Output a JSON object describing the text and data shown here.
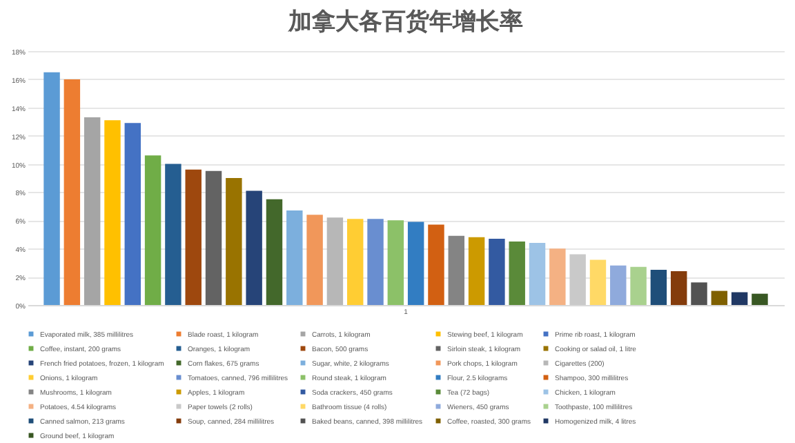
{
  "chart_data": {
    "type": "bar",
    "title": "加拿大各百货年增长率",
    "categories": [
      "1"
    ],
    "ylim": [
      0,
      18
    ],
    "yticks": [
      {
        "value": 0,
        "label": "0%"
      },
      {
        "value": 2,
        "label": "2%"
      },
      {
        "value": 4,
        "label": "4%"
      },
      {
        "value": 6,
        "label": "6%"
      },
      {
        "value": 8,
        "label": "8%"
      },
      {
        "value": 10,
        "label": "10%"
      },
      {
        "value": 12,
        "label": "12%"
      },
      {
        "value": 14,
        "label": "14%"
      },
      {
        "value": 16,
        "label": "16%"
      },
      {
        "value": 18,
        "label": "18%"
      }
    ],
    "grid": "y",
    "legend": "bottom",
    "series": [
      {
        "name": "Evaporated milk, 385 millilitres",
        "color": "#5b9bd5",
        "values": [
          16.5
        ]
      },
      {
        "name": "Blade roast, 1 kilogram",
        "color": "#ed7d31",
        "values": [
          16.0
        ]
      },
      {
        "name": "Carrots, 1 kilogram",
        "color": "#a5a5a5",
        "values": [
          13.3
        ]
      },
      {
        "name": "Stewing beef, 1 kilogram",
        "color": "#ffc000",
        "values": [
          13.1
        ]
      },
      {
        "name": "Prime rib roast, 1 kilogram",
        "color": "#4472c4",
        "values": [
          12.9
        ]
      },
      {
        "name": "Coffee, instant, 200 grams",
        "color": "#70ad47",
        "values": [
          10.6
        ]
      },
      {
        "name": "Oranges, 1 kilogram",
        "color": "#255e91",
        "values": [
          10.0
        ]
      },
      {
        "name": "Bacon, 500 grams",
        "color": "#9e480e",
        "values": [
          9.6
        ]
      },
      {
        "name": "Sirloin steak, 1 kilogram",
        "color": "#636363",
        "values": [
          9.5
        ]
      },
      {
        "name": "Cooking or salad oil, 1 litre",
        "color": "#997300",
        "values": [
          9.0
        ]
      },
      {
        "name": "French fried potatoes, frozen, 1 kilogram",
        "color": "#264478",
        "values": [
          8.1
        ]
      },
      {
        "name": "Corn flakes, 675 grams",
        "color": "#43682b",
        "values": [
          7.5
        ]
      },
      {
        "name": "Sugar, white, 2 kilograms",
        "color": "#7cafdd",
        "values": [
          6.7
        ]
      },
      {
        "name": "Pork chops, 1 kilogram",
        "color": "#f1975a",
        "values": [
          6.4
        ]
      },
      {
        "name": "Cigarettes (200)",
        "color": "#b7b7b7",
        "values": [
          6.2
        ]
      },
      {
        "name": "Onions, 1 kilogram",
        "color": "#ffcd33",
        "values": [
          6.1
        ]
      },
      {
        "name": "Tomatoes, canned, 796 millilitres",
        "color": "#698ed0",
        "values": [
          6.1
        ]
      },
      {
        "name": "Round steak, 1 kilogram",
        "color": "#8cc168",
        "values": [
          6.0
        ]
      },
      {
        "name": "Flour, 2.5 kilograms",
        "color": "#327dc2",
        "values": [
          5.9
        ]
      },
      {
        "name": "Shampoo, 300 millilitres",
        "color": "#d26012",
        "values": [
          5.7
        ]
      },
      {
        "name": "Mushrooms, 1 kilogram",
        "color": "#848484",
        "values": [
          4.9
        ]
      },
      {
        "name": "Apples, 1 kilogram",
        "color": "#cc9a00",
        "values": [
          4.8
        ]
      },
      {
        "name": "Soda crackers, 450 grams",
        "color": "#335aa1",
        "values": [
          4.7
        ]
      },
      {
        "name": "Tea (72 bags)",
        "color": "#5a8a39",
        "values": [
          4.5
        ]
      },
      {
        "name": "Chicken, 1 kilogram",
        "color": "#9dc3e6",
        "values": [
          4.4
        ]
      },
      {
        "name": "Potatoes, 4.54 kilograms",
        "color": "#f4b183",
        "values": [
          4.0
        ]
      },
      {
        "name": "Paper towels (2 rolls)",
        "color": "#c9c9c9",
        "values": [
          3.6
        ]
      },
      {
        "name": "Bathroom tissue (4 rolls)",
        "color": "#ffd966",
        "values": [
          3.2
        ]
      },
      {
        "name": "Wieners, 450 grams",
        "color": "#8faadc",
        "values": [
          2.8
        ]
      },
      {
        "name": "Toothpaste, 100 millilitres",
        "color": "#a9d18e",
        "values": [
          2.7
        ]
      },
      {
        "name": "Canned salmon, 213 grams",
        "color": "#1f4e79",
        "values": [
          2.5
        ]
      },
      {
        "name": "Soup, canned, 284 millilitres",
        "color": "#843c0c",
        "values": [
          2.4
        ]
      },
      {
        "name": "Baked beans, canned, 398 millilitres",
        "color": "#525252",
        "values": [
          1.6
        ]
      },
      {
        "name": "Coffee, roasted, 300 grams",
        "color": "#7f6000",
        "values": [
          1.0
        ]
      },
      {
        "name": "Homogenized milk, 4 litres",
        "color": "#203864",
        "values": [
          0.9
        ]
      },
      {
        "name": "Ground beef, 1 kilogram",
        "color": "#385723",
        "values": [
          0.8
        ]
      }
    ]
  }
}
